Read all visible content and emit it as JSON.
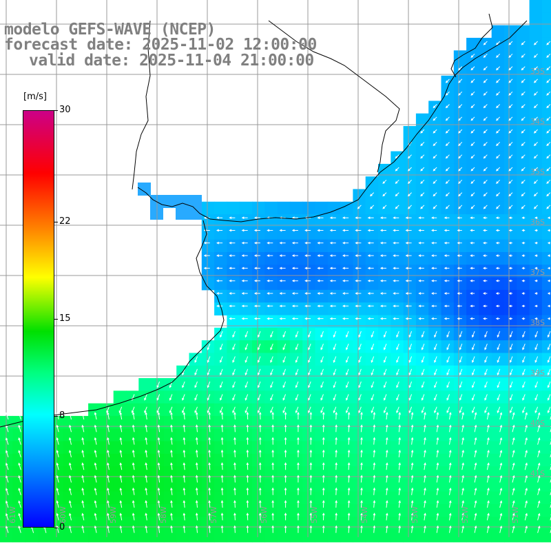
{
  "header": {
    "line1": "modelo GEFS-WAVE (NCEP)",
    "line2": "forecast date: 2025-11-02 12:00:00",
    "line3": "valid date: 2025-11-04 21:00:00"
  },
  "legend": {
    "unit": "[m/s]",
    "ticks": [
      "30",
      "22",
      "15",
      "8",
      "0"
    ],
    "tick_values": [
      30,
      22,
      15,
      8,
      0
    ],
    "colors": [
      "#0000ff",
      "#00aaff",
      "#00ffff",
      "#00ff00",
      "#ffff00",
      "#ff8000",
      "#ff0000",
      "#cc0088"
    ]
  },
  "latitude_labels": [
    "33S",
    "34S",
    "35S",
    "36S",
    "37S",
    "38S",
    "39S",
    "40S",
    "41S"
  ],
  "longitude_labels": [
    "61W",
    "60W",
    "59W",
    "58W",
    "57W",
    "56W",
    "55W",
    "54W",
    "53W",
    "52W",
    "51W"
  ],
  "colors": {
    "land": "#ffffff",
    "coast": "#000000",
    "grid": "#999999",
    "arrow": "#ffffff"
  }
}
